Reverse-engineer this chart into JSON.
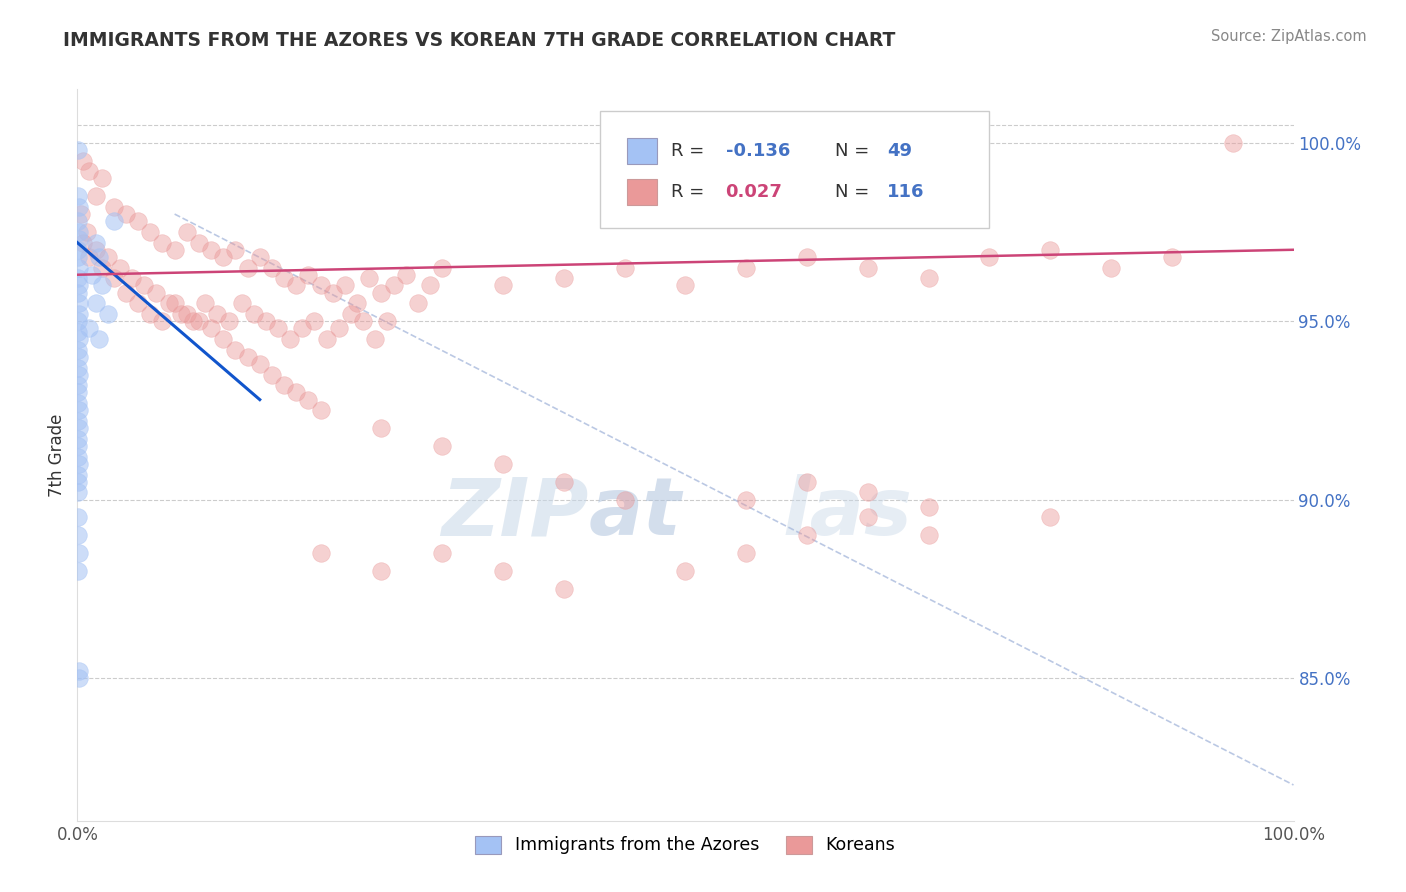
{
  "title": "IMMIGRANTS FROM THE AZORES VS KOREAN 7TH GRADE CORRELATION CHART",
  "source": "Source: ZipAtlas.com",
  "ylabel": "7th Grade",
  "xmin": 0.0,
  "xmax": 100.0,
  "ymin": 81.0,
  "ymax": 101.5,
  "yticks": [
    85.0,
    90.0,
    95.0,
    100.0
  ],
  "right_ytick_labels": [
    "85.0%",
    "90.0%",
    "95.0%",
    "100.0%"
  ],
  "blue_color": "#a4c2f4",
  "pink_color": "#ea9999",
  "blue_scatter": [
    [
      0.05,
      99.8
    ],
    [
      0.08,
      98.5
    ],
    [
      0.12,
      98.2
    ],
    [
      0.06,
      97.8
    ],
    [
      0.1,
      97.5
    ],
    [
      0.15,
      97.3
    ],
    [
      0.09,
      97.0
    ],
    [
      0.07,
      96.8
    ],
    [
      0.11,
      96.5
    ],
    [
      0.08,
      96.2
    ],
    [
      0.13,
      96.0
    ],
    [
      0.06,
      95.8
    ],
    [
      0.1,
      95.5
    ],
    [
      0.14,
      95.2
    ],
    [
      0.09,
      95.0
    ],
    [
      0.08,
      94.7
    ],
    [
      0.12,
      94.5
    ],
    [
      0.07,
      94.2
    ],
    [
      0.11,
      94.0
    ],
    [
      0.06,
      93.7
    ],
    [
      0.1,
      93.5
    ],
    [
      0.08,
      93.2
    ],
    [
      0.09,
      93.0
    ],
    [
      0.07,
      92.7
    ],
    [
      0.11,
      92.5
    ],
    [
      0.08,
      92.2
    ],
    [
      0.1,
      92.0
    ],
    [
      0.07,
      91.7
    ],
    [
      0.09,
      91.5
    ],
    [
      0.08,
      91.2
    ],
    [
      0.1,
      91.0
    ],
    [
      0.07,
      90.7
    ],
    [
      0.09,
      90.5
    ],
    [
      0.08,
      90.2
    ],
    [
      0.07,
      89.5
    ],
    [
      0.06,
      89.0
    ],
    [
      0.1,
      88.5
    ],
    [
      0.08,
      88.0
    ],
    [
      0.1,
      85.2
    ],
    [
      0.12,
      85.0
    ],
    [
      1.5,
      97.2
    ],
    [
      1.8,
      96.8
    ],
    [
      1.2,
      96.3
    ],
    [
      2.0,
      96.0
    ],
    [
      1.5,
      95.5
    ],
    [
      2.5,
      95.2
    ],
    [
      1.0,
      94.8
    ],
    [
      1.8,
      94.5
    ],
    [
      3.0,
      97.8
    ]
  ],
  "pink_scatter": [
    [
      0.5,
      99.5
    ],
    [
      1.0,
      99.2
    ],
    [
      2.0,
      99.0
    ],
    [
      1.5,
      98.5
    ],
    [
      3.0,
      98.2
    ],
    [
      4.0,
      98.0
    ],
    [
      5.0,
      97.8
    ],
    [
      6.0,
      97.5
    ],
    [
      7.0,
      97.2
    ],
    [
      8.0,
      97.0
    ],
    [
      9.0,
      97.5
    ],
    [
      10.0,
      97.2
    ],
    [
      11.0,
      97.0
    ],
    [
      12.0,
      96.8
    ],
    [
      13.0,
      97.0
    ],
    [
      14.0,
      96.5
    ],
    [
      15.0,
      96.8
    ],
    [
      16.0,
      96.5
    ],
    [
      17.0,
      96.2
    ],
    [
      18.0,
      96.0
    ],
    [
      19.0,
      96.3
    ],
    [
      20.0,
      96.0
    ],
    [
      21.0,
      95.8
    ],
    [
      22.0,
      96.0
    ],
    [
      23.0,
      95.5
    ],
    [
      24.0,
      96.2
    ],
    [
      25.0,
      95.8
    ],
    [
      26.0,
      96.0
    ],
    [
      27.0,
      96.3
    ],
    [
      28.0,
      95.5
    ],
    [
      29.0,
      96.0
    ],
    [
      30.0,
      96.5
    ],
    [
      35.0,
      96.0
    ],
    [
      40.0,
      96.2
    ],
    [
      45.0,
      96.5
    ],
    [
      50.0,
      96.0
    ],
    [
      55.0,
      96.5
    ],
    [
      60.0,
      96.8
    ],
    [
      65.0,
      96.5
    ],
    [
      70.0,
      96.2
    ],
    [
      75.0,
      96.8
    ],
    [
      80.0,
      97.0
    ],
    [
      85.0,
      96.5
    ],
    [
      90.0,
      96.8
    ],
    [
      95.0,
      100.0
    ],
    [
      0.3,
      98.0
    ],
    [
      0.8,
      97.5
    ],
    [
      1.5,
      97.0
    ],
    [
      2.5,
      96.8
    ],
    [
      3.5,
      96.5
    ],
    [
      4.5,
      96.2
    ],
    [
      5.5,
      96.0
    ],
    [
      6.5,
      95.8
    ],
    [
      7.5,
      95.5
    ],
    [
      8.5,
      95.2
    ],
    [
      9.5,
      95.0
    ],
    [
      10.5,
      95.5
    ],
    [
      11.5,
      95.2
    ],
    [
      12.5,
      95.0
    ],
    [
      13.5,
      95.5
    ],
    [
      14.5,
      95.2
    ],
    [
      15.5,
      95.0
    ],
    [
      16.5,
      94.8
    ],
    [
      17.5,
      94.5
    ],
    [
      18.5,
      94.8
    ],
    [
      19.5,
      95.0
    ],
    [
      20.5,
      94.5
    ],
    [
      21.5,
      94.8
    ],
    [
      22.5,
      95.2
    ],
    [
      23.5,
      95.0
    ],
    [
      24.5,
      94.5
    ],
    [
      25.5,
      95.0
    ],
    [
      0.5,
      97.2
    ],
    [
      1.0,
      96.8
    ],
    [
      2.0,
      96.5
    ],
    [
      3.0,
      96.2
    ],
    [
      4.0,
      95.8
    ],
    [
      5.0,
      95.5
    ],
    [
      6.0,
      95.2
    ],
    [
      7.0,
      95.0
    ],
    [
      8.0,
      95.5
    ],
    [
      9.0,
      95.2
    ],
    [
      10.0,
      95.0
    ],
    [
      11.0,
      94.8
    ],
    [
      12.0,
      94.5
    ],
    [
      13.0,
      94.2
    ],
    [
      14.0,
      94.0
    ],
    [
      15.0,
      93.8
    ],
    [
      16.0,
      93.5
    ],
    [
      17.0,
      93.2
    ],
    [
      18.0,
      93.0
    ],
    [
      19.0,
      92.8
    ],
    [
      20.0,
      92.5
    ],
    [
      25.0,
      92.0
    ],
    [
      30.0,
      91.5
    ],
    [
      35.0,
      91.0
    ],
    [
      40.0,
      90.5
    ],
    [
      45.0,
      90.0
    ],
    [
      20.0,
      88.5
    ],
    [
      25.0,
      88.0
    ],
    [
      30.0,
      88.5
    ],
    [
      35.0,
      88.0
    ],
    [
      40.0,
      87.5
    ],
    [
      50.0,
      88.0
    ],
    [
      55.0,
      88.5
    ],
    [
      60.0,
      89.0
    ],
    [
      65.0,
      89.5
    ],
    [
      70.0,
      89.0
    ],
    [
      55.0,
      90.0
    ],
    [
      60.0,
      90.5
    ],
    [
      65.0,
      90.2
    ],
    [
      70.0,
      89.8
    ],
    [
      80.0,
      89.5
    ]
  ],
  "blue_line": [
    [
      0.0,
      97.2
    ],
    [
      15.0,
      92.8
    ]
  ],
  "pink_line": [
    [
      0.0,
      96.3
    ],
    [
      100.0,
      97.0
    ]
  ],
  "diag_line": [
    [
      8.0,
      98.0
    ],
    [
      100.0,
      82.0
    ]
  ]
}
